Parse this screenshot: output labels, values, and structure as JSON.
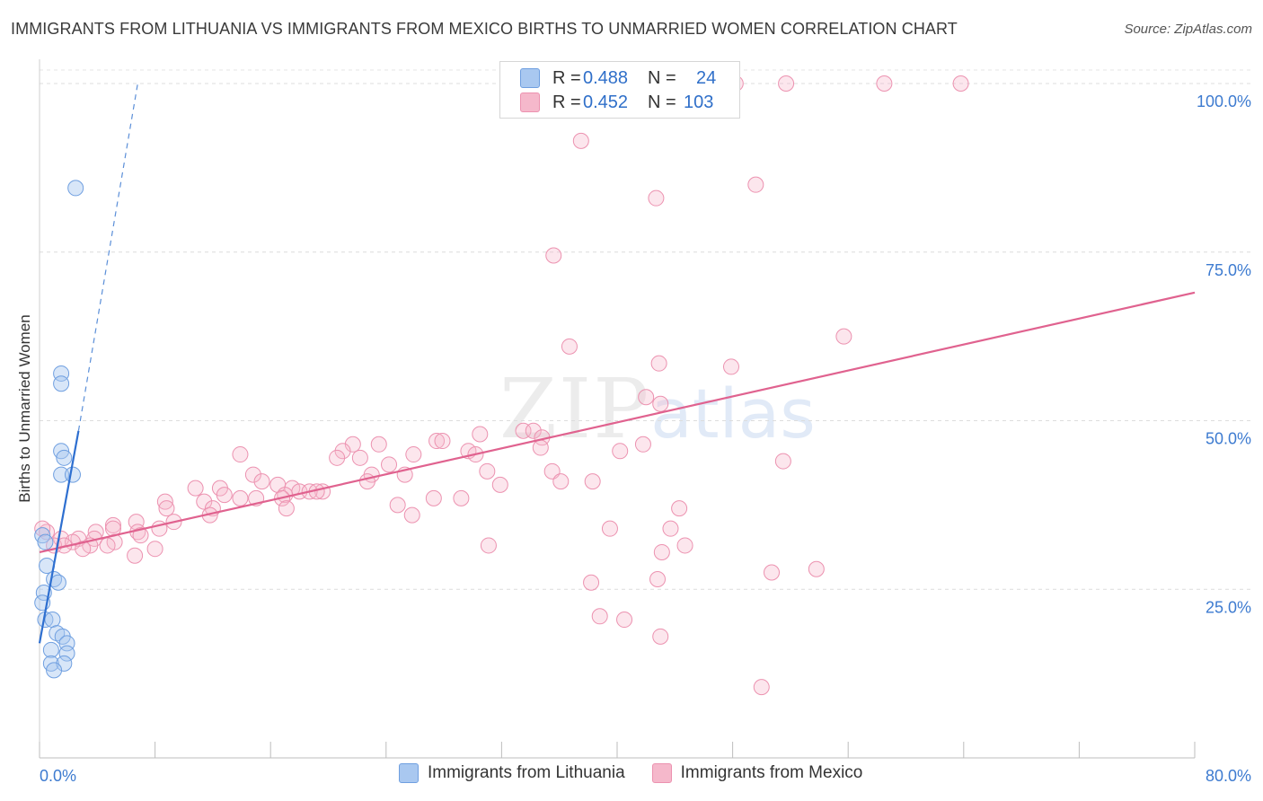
{
  "header": {
    "title": "IMMIGRANTS FROM LITHUANIA VS IMMIGRANTS FROM MEXICO BIRTHS TO UNMARRIED WOMEN CORRELATION CHART",
    "source": "Source: ZipAtlas.com"
  },
  "watermark": {
    "zip": "ZIP",
    "atlas": "atlas"
  },
  "legend": {
    "rows": [
      {
        "r_label": "R =",
        "r_value": "0.488",
        "n_label": "N =",
        "n_value": "24",
        "color": "#a9c8f0"
      },
      {
        "r_label": "R =",
        "r_value": "0.452",
        "n_label": "N =",
        "n_value": "103",
        "color": "#f5b8cb"
      }
    ]
  },
  "bottom_legend": {
    "items": [
      {
        "label": "Immigrants from Lithuania",
        "color": "#a9c8f0"
      },
      {
        "label": "Immigrants from Mexico",
        "color": "#f5b8cb"
      }
    ]
  },
  "chart_data": {
    "type": "scatter",
    "title": "IMMIGRANTS FROM LITHUANIA VS IMMIGRANTS FROM MEXICO BIRTHS TO UNMARRIED WOMEN CORRELATION CHART",
    "xlabel": "",
    "ylabel": "Births to Unmarried Women",
    "xlim": [
      0,
      80
    ],
    "ylim": [
      0,
      102
    ],
    "x_tick_labels": [
      "0.0%",
      "80.0%"
    ],
    "y_tick_labels": [
      "25.0%",
      "50.0%",
      "75.0%",
      "100.0%"
    ],
    "y_ticks": [
      25,
      50,
      75,
      100
    ],
    "grid": true,
    "legend_position": "top-center",
    "colors": {
      "lithuania": "#5b8fd8",
      "mexico": "#e8789c"
    },
    "series": [
      {
        "name": "Immigrants from Lithuania",
        "r": 0.488,
        "n": 24,
        "trend": {
          "x0": 0.0,
          "y0": 17.0,
          "x1": 2.7,
          "y1": 48.5,
          "dash_to_x": 6.8,
          "dash_to_y": 100.0
        },
        "points": [
          [
            2.5,
            84.5
          ],
          [
            1.5,
            57.0
          ],
          [
            1.5,
            55.5
          ],
          [
            1.5,
            45.5
          ],
          [
            1.7,
            44.5
          ],
          [
            1.5,
            42.0
          ],
          [
            2.3,
            42.0
          ],
          [
            0.2,
            33.0
          ],
          [
            0.4,
            32.0
          ],
          [
            0.5,
            28.5
          ],
          [
            1.0,
            26.5
          ],
          [
            1.3,
            26.0
          ],
          [
            0.3,
            24.5
          ],
          [
            0.2,
            23.0
          ],
          [
            0.4,
            20.5
          ],
          [
            0.9,
            20.5
          ],
          [
            1.2,
            18.5
          ],
          [
            1.6,
            18.0
          ],
          [
            1.9,
            17.0
          ],
          [
            0.8,
            16.0
          ],
          [
            1.9,
            15.5
          ],
          [
            0.8,
            14.0
          ],
          [
            1.7,
            14.0
          ],
          [
            1.0,
            13.0
          ]
        ]
      },
      {
        "name": "Immigrants from Mexico",
        "r": 0.452,
        "n": 103,
        "trend": {
          "x0": 0.0,
          "y0": 30.5,
          "x1": 80.0,
          "y1": 69.0
        },
        "points": [
          [
            48.2,
            100.0
          ],
          [
            51.7,
            100.0
          ],
          [
            58.5,
            100.0
          ],
          [
            63.8,
            100.0
          ],
          [
            37.5,
            91.5
          ],
          [
            49.6,
            85.0
          ],
          [
            42.7,
            83.0
          ],
          [
            35.6,
            74.5
          ],
          [
            55.7,
            62.5
          ],
          [
            36.7,
            61.0
          ],
          [
            42.9,
            58.5
          ],
          [
            47.9,
            58.0
          ],
          [
            42.0,
            53.5
          ],
          [
            43.0,
            52.5
          ],
          [
            33.5,
            48.5
          ],
          [
            34.2,
            48.5
          ],
          [
            30.5,
            48.0
          ],
          [
            34.8,
            47.5
          ],
          [
            27.5,
            47.0
          ],
          [
            27.9,
            47.0
          ],
          [
            23.5,
            46.5
          ],
          [
            21.7,
            46.5
          ],
          [
            41.8,
            46.5
          ],
          [
            34.7,
            46.0
          ],
          [
            40.2,
            45.5
          ],
          [
            29.7,
            45.5
          ],
          [
            30.2,
            45.0
          ],
          [
            21.0,
            45.5
          ],
          [
            25.9,
            45.0
          ],
          [
            13.9,
            45.0
          ],
          [
            20.6,
            44.5
          ],
          [
            22.2,
            44.5
          ],
          [
            51.5,
            44.0
          ],
          [
            24.2,
            43.5
          ],
          [
            31.0,
            42.5
          ],
          [
            35.5,
            42.5
          ],
          [
            25.3,
            42.0
          ],
          [
            23.0,
            42.0
          ],
          [
            14.8,
            42.0
          ],
          [
            36.1,
            41.0
          ],
          [
            38.3,
            41.0
          ],
          [
            22.7,
            41.0
          ],
          [
            15.4,
            41.0
          ],
          [
            31.9,
            40.5
          ],
          [
            16.5,
            40.5
          ],
          [
            17.5,
            40.0
          ],
          [
            10.8,
            40.0
          ],
          [
            12.5,
            40.0
          ],
          [
            18.0,
            39.5
          ],
          [
            19.6,
            39.5
          ],
          [
            18.7,
            39.5
          ],
          [
            19.2,
            39.5
          ],
          [
            17.0,
            39.0
          ],
          [
            12.8,
            39.0
          ],
          [
            13.9,
            38.5
          ],
          [
            15.0,
            38.5
          ],
          [
            27.3,
            38.5
          ],
          [
            29.2,
            38.5
          ],
          [
            11.4,
            38.0
          ],
          [
            8.7,
            38.0
          ],
          [
            16.8,
            38.5
          ],
          [
            24.8,
            37.5
          ],
          [
            12.0,
            37.0
          ],
          [
            8.8,
            37.0
          ],
          [
            44.3,
            37.0
          ],
          [
            17.1,
            37.0
          ],
          [
            11.8,
            36.0
          ],
          [
            25.8,
            36.0
          ],
          [
            6.7,
            35.0
          ],
          [
            9.3,
            35.0
          ],
          [
            5.1,
            34.5
          ],
          [
            8.3,
            34.0
          ],
          [
            5.1,
            34.0
          ],
          [
            39.5,
            34.0
          ],
          [
            43.7,
            34.0
          ],
          [
            6.8,
            33.5
          ],
          [
            3.9,
            33.5
          ],
          [
            7.0,
            33.0
          ],
          [
            1.5,
            32.5
          ],
          [
            2.7,
            32.5
          ],
          [
            3.8,
            32.5
          ],
          [
            5.2,
            32.0
          ],
          [
            2.3,
            32.0
          ],
          [
            4.7,
            31.5
          ],
          [
            1.0,
            31.5
          ],
          [
            1.7,
            31.5
          ],
          [
            3.5,
            31.5
          ],
          [
            3.0,
            31.0
          ],
          [
            0.5,
            33.5
          ],
          [
            31.1,
            31.5
          ],
          [
            44.7,
            31.5
          ],
          [
            8.0,
            31.0
          ],
          [
            6.6,
            30.0
          ],
          [
            43.1,
            30.5
          ],
          [
            50.7,
            27.5
          ],
          [
            53.8,
            28.0
          ],
          [
            42.8,
            26.5
          ],
          [
            38.2,
            26.0
          ],
          [
            38.8,
            21.0
          ],
          [
            40.5,
            20.5
          ],
          [
            43.0,
            18.0
          ],
          [
            50.0,
            10.5
          ],
          [
            0.2,
            34.0
          ]
        ]
      }
    ]
  }
}
